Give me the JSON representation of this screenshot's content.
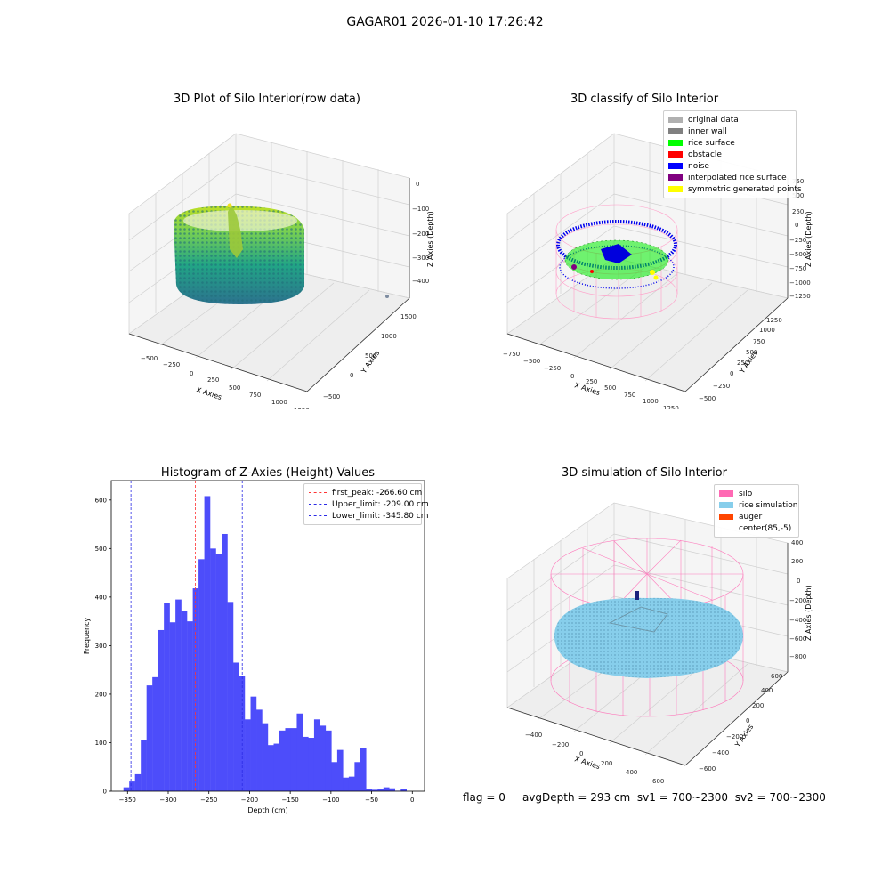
{
  "suptitle": "GAGAR01 2026-01-10 17:26:42",
  "colors": {
    "hist_bar": "#4d4dfa",
    "first_peak": "#ff3333",
    "limits": "#2a2ae6",
    "silo": "#ff69b4",
    "rice": "#87ceeb",
    "auger": "#ff4500"
  },
  "plots": {
    "raw": {
      "title": "3D Plot of Silo Interior(row data)",
      "xlabel": "X Axies",
      "ylabel": "Y Axies",
      "zlabel": "Z Axies (Depth)",
      "xticks": [
        "−500",
        "−250",
        "0",
        "250",
        "500",
        "750",
        "1000",
        "1250"
      ],
      "yticks": [
        "−500",
        "0",
        "500",
        "1000",
        "1500"
      ],
      "zticks": [
        "−400",
        "−300",
        "−200",
        "−100",
        "0"
      ]
    },
    "classify": {
      "title": "3D classify of Silo Interior",
      "xlabel": "X Axies",
      "ylabel": "Y Axies",
      "zlabel": "Z Axies (Depth)",
      "xticks": [
        "−750",
        "−500",
        "−250",
        "0",
        "250",
        "500",
        "750",
        "1000",
        "1250"
      ],
      "yticks": [
        "−500",
        "−250",
        "0",
        "250",
        "500",
        "750",
        "1000",
        "1250"
      ],
      "zticks": [
        "−1250",
        "−1000",
        "−750",
        "−500",
        "−250",
        "0",
        "250",
        "500",
        "750"
      ],
      "legend": [
        {
          "label": "original data",
          "color": "#b0b0b0"
        },
        {
          "label": "inner wall",
          "color": "#808080"
        },
        {
          "label": "rice surface",
          "color": "#00ff00"
        },
        {
          "label": "obstacle",
          "color": "#ff0000"
        },
        {
          "label": "noise",
          "color": "#0000ff"
        },
        {
          "label": "interpolated rice surface",
          "color": "#800080"
        },
        {
          "label": "symmetric generated points",
          "color": "#ffff00"
        }
      ]
    },
    "simulation": {
      "title": "3D simulation of Silo Interior",
      "xlabel": "X Axies",
      "ylabel": "Y Axies",
      "zlabel": "Z Axies (Depth)",
      "xticks": [
        "−400",
        "−200",
        "0",
        "200",
        "400",
        "600"
      ],
      "yticks": [
        "−600",
        "−400",
        "−200",
        "0",
        "200",
        "400",
        "600"
      ],
      "zticks": [
        "−800",
        "−600",
        "−400",
        "−200",
        "0",
        "200",
        "400"
      ],
      "legend": [
        {
          "label": "silo",
          "color": "#ff69b4"
        },
        {
          "label": "rice simulation",
          "color": "#87ceeb"
        },
        {
          "label": "auger",
          "color": "#ff4500"
        },
        {
          "label": "center(85,-5)",
          "color": ""
        }
      ]
    }
  },
  "chart_data": {
    "type": "bar",
    "title": "Histogram of Z-Axies (Height) Values",
    "xlabel": "Depth (cm)",
    "ylabel": "Frequency",
    "xlim": [
      -370,
      15
    ],
    "ylim": [
      0,
      640
    ],
    "xticks": [
      -350,
      -300,
      -250,
      -200,
      -150,
      -100,
      -50,
      0
    ],
    "yticks": [
      0,
      100,
      200,
      300,
      400,
      500,
      600
    ],
    "bin_start": -355,
    "bin_width": 7.1,
    "values": [
      8,
      20,
      35,
      105,
      218,
      235,
      332,
      388,
      348,
      395,
      372,
      350,
      418,
      478,
      608,
      500,
      488,
      530,
      390,
      265,
      238,
      148,
      195,
      168,
      140,
      95,
      98,
      125,
      130,
      130,
      160,
      112,
      110,
      148,
      135,
      125,
      60,
      85,
      28,
      30,
      60,
      88,
      5,
      3,
      5,
      8,
      6,
      1,
      5,
      0
    ],
    "vlines": [
      {
        "label": "first_peak: -266.60 cm",
        "x": -266.6,
        "color": "#ff3333"
      },
      {
        "label": "Upper_limit: -209.00 cm",
        "x": -209.0,
        "color": "#2a2ae6"
      },
      {
        "label": "Lower_limit: -345.80 cm",
        "x": -345.8,
        "color": "#2a2ae6"
      }
    ],
    "legend_position": "top-right"
  },
  "footer": {
    "flag": "flag = 0",
    "avg": "avgDepth = 293 cm",
    "sv1": "sv1 = 700~2300",
    "sv2": "sv2 = 700~2300"
  }
}
